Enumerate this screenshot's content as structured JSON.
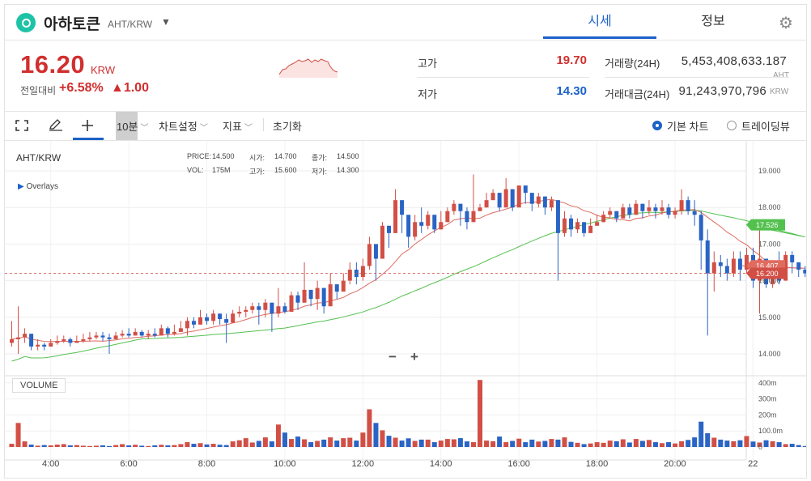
{
  "header": {
    "coin_name": "아하토큰",
    "pair": "AHT/KRW",
    "tabs": [
      {
        "label": "시세",
        "active": true
      },
      {
        "label": "정보",
        "active": false
      }
    ],
    "settings_icon": "gear-icon",
    "dropdown_icon": "caret-down-icon"
  },
  "price": {
    "current": "16.20",
    "currency": "KRW",
    "change_label": "전일대비",
    "change_rate": "+6.58%",
    "change_amount": "▲1.00"
  },
  "stats": {
    "high_label": "고가",
    "high_value": "19.70",
    "low_label": "저가",
    "low_value": "14.30",
    "volume_label": "거래량(24H)",
    "volume_value": "5,453,408,633.187",
    "volume_unit": "AHT",
    "amount_label": "거래대금(24H)",
    "amount_value": "91,243,970,796",
    "amount_unit": "KRW"
  },
  "toolbar": {
    "fullscreen_icon": "fullscreen-icon",
    "pencil_icon": "pencil-icon",
    "crosshair_icon": "crosshair-icon",
    "interval": "10분",
    "chart_settings": "차트설정",
    "indicators": "지표",
    "reset": "초기화",
    "basic_chart": "기본 차트",
    "trading_view": "트레이딩뷰"
  },
  "legend": {
    "symbol": "AHT/KRW",
    "overlays": "Overlays",
    "price_label": "PRICE:",
    "price_value": "14.500",
    "open_label": "시가:",
    "open_value": "14.700",
    "close_label": "종가:",
    "close_value": "14.500",
    "vol_label": "VOL:",
    "vol_value": "175M",
    "high_label": "고가:",
    "high_value": "15.600",
    "low_label": "저가:",
    "low_value": "14.300"
  },
  "volume_panel": {
    "label": "VOLUME"
  },
  "zoom": {
    "minus": "−",
    "plus": "+"
  },
  "colors": {
    "up": "#d24f45",
    "down": "#2a64c4",
    "ma_fast": "#e06c60",
    "ma_slow": "#54c14f",
    "brand": "#1ec3a6",
    "accent": "#1b61c8"
  },
  "chart_data": {
    "type": "candlestick",
    "price_axis_ticks": [
      "19.000",
      "18.000",
      "17.000",
      "16.000",
      "15.000",
      "14.000"
    ],
    "volume_axis_ticks": [
      "400m",
      "300m",
      "200m",
      "100.0m",
      "0"
    ],
    "x_ticks": [
      "4:00",
      "6:00",
      "8:00",
      "10:00",
      "12:00",
      "14:00",
      "16:00",
      "18:00",
      "20:00",
      "22"
    ],
    "ylim": [
      13.6,
      19.3
    ],
    "current_price_label": "16.200",
    "ma_fast_label": "16.407",
    "ma_slow_label": "17.526",
    "candles_start": 3.0,
    "candle_interval_hours": 0.1667,
    "closes": [
      14.4,
      14.45,
      14.55,
      14.2,
      14.25,
      14.2,
      14.3,
      14.35,
      14.4,
      14.3,
      14.35,
      14.4,
      14.45,
      14.5,
      14.45,
      14.4,
      14.5,
      14.55,
      14.5,
      14.6,
      14.5,
      14.55,
      14.5,
      14.7,
      14.55,
      14.6,
      14.7,
      14.9,
      14.8,
      15.0,
      14.9,
      15.1,
      14.95,
      14.85,
      15.1,
      15.15,
      15.2,
      15.3,
      15.2,
      15.4,
      15.1,
      15.3,
      15.15,
      15.6,
      15.4,
      15.75,
      15.5,
      15.8,
      15.3,
      15.9,
      15.7,
      16.0,
      16.3,
      16.1,
      16.4,
      17.0,
      16.6,
      17.5,
      17.3,
      18.2,
      17.8,
      17.2,
      17.6,
      17.5,
      17.8,
      17.4,
      17.6,
      17.9,
      18.1,
      17.9,
      17.6,
      17.9,
      18.0,
      18.2,
      18.4,
      18.0,
      18.5,
      18.0,
      18.6,
      18.4,
      18.1,
      18.3,
      18.0,
      18.2,
      17.3,
      17.7,
      17.4,
      17.6,
      17.3,
      17.5,
      17.6,
      17.8,
      17.9,
      17.7,
      18.0,
      17.8,
      18.1,
      17.9,
      18.0,
      17.9,
      18.0,
      17.8,
      17.9,
      18.2,
      17.9,
      17.8,
      17.1,
      16.2,
      16.5,
      16.4,
      16.2,
      16.6,
      16.3,
      16.7,
      16.0,
      16.6,
      15.9,
      16.3,
      16.0,
      16.7,
      16.5,
      16.3,
      16.2
    ],
    "highs": [
      14.9,
      15.3,
      14.7,
      14.5,
      14.4,
      14.3,
      14.4,
      14.5,
      14.5,
      14.45,
      14.5,
      14.55,
      14.6,
      14.6,
      14.6,
      14.55,
      14.6,
      14.65,
      14.7,
      14.7,
      14.65,
      14.65,
      14.7,
      14.8,
      14.75,
      14.8,
      14.9,
      15.0,
      15.0,
      15.2,
      15.1,
      15.2,
      15.1,
      15.1,
      15.2,
      15.3,
      15.3,
      15.4,
      15.4,
      15.5,
      15.3,
      15.8,
      15.4,
      15.7,
      15.7,
      16.5,
      15.7,
      16.0,
      15.8,
      16.2,
      15.9,
      16.2,
      16.5,
      16.5,
      16.6,
      17.2,
      16.9,
      17.6,
      17.5,
      18.5,
      17.9,
      17.7,
      17.8,
      18.0,
      17.9,
      17.8,
      17.9,
      18.0,
      18.2,
      18.1,
      18.0,
      18.9,
      18.1,
      18.4,
      18.5,
      18.4,
      18.8,
      18.3,
      18.6,
      18.5,
      18.3,
      18.4,
      18.3,
      18.3,
      18.2,
      17.9,
      17.8,
      17.7,
      17.6,
      17.7,
      17.8,
      17.9,
      18.0,
      17.9,
      18.1,
      18.1,
      18.2,
      18.1,
      18.2,
      18.1,
      18.2,
      18.1,
      18.0,
      18.5,
      18.3,
      18.2,
      17.9,
      17.4,
      16.8,
      16.7,
      16.6,
      16.8,
      16.8,
      16.9,
      16.9,
      17.5,
      16.3,
      16.4,
      16.8,
      16.8,
      16.8,
      16.5,
      16.4
    ],
    "lows": [
      14.2,
      14.0,
      14.3,
      14.1,
      14.1,
      14.1,
      14.2,
      14.25,
      14.3,
      14.2,
      14.3,
      14.3,
      14.35,
      14.4,
      14.35,
      14.0,
      14.4,
      14.45,
      14.45,
      14.5,
      14.45,
      14.4,
      14.45,
      14.55,
      14.45,
      14.5,
      14.6,
      14.5,
      14.7,
      14.8,
      14.8,
      14.8,
      14.8,
      14.3,
      14.9,
      15.0,
      15.0,
      15.1,
      14.8,
      15.0,
      14.6,
      15.0,
      15.1,
      15.2,
      15.2,
      15.4,
      15.3,
      15.2,
      15.1,
      15.6,
      15.5,
      15.8,
      15.9,
      15.9,
      16.0,
      16.3,
      16.0,
      17.0,
      16.9,
      17.3,
      17.3,
      16.9,
      17.1,
      17.3,
      17.4,
      17.3,
      17.4,
      17.6,
      17.8,
      17.5,
      17.4,
      17.8,
      17.9,
      18.0,
      18.2,
      17.9,
      18.0,
      17.9,
      18.2,
      18.1,
      17.9,
      18.0,
      17.8,
      17.9,
      16.0,
      17.2,
      17.2,
      17.3,
      17.2,
      17.3,
      17.5,
      17.6,
      17.7,
      17.6,
      17.7,
      17.7,
      17.8,
      17.7,
      17.8,
      17.7,
      17.8,
      17.7,
      17.7,
      17.8,
      17.8,
      17.5,
      16.3,
      14.5,
      15.7,
      16.1,
      16.0,
      16.1,
      16.0,
      16.2,
      15.8,
      15.1,
      15.8,
      15.8,
      15.9,
      16.0,
      16.2,
      16.1,
      16.1
    ],
    "volumes": [
      20,
      150,
      35,
      15,
      8,
      12,
      10,
      15,
      18,
      10,
      12,
      8,
      6,
      8,
      10,
      6,
      12,
      18,
      10,
      14,
      8,
      6,
      10,
      14,
      10,
      12,
      18,
      30,
      20,
      24,
      16,
      20,
      14,
      12,
      35,
      42,
      55,
      28,
      38,
      60,
      35,
      140,
      90,
      50,
      65,
      48,
      30,
      38,
      46,
      60,
      40,
      55,
      58,
      40,
      90,
      235,
      150,
      104,
      70,
      58,
      40,
      54,
      38,
      46,
      46,
      30,
      40,
      50,
      48,
      55,
      35,
      30,
      418,
      40,
      36,
      65,
      30,
      38,
      52,
      30,
      46,
      34,
      38,
      50,
      46,
      60,
      32,
      26,
      18,
      22,
      30,
      26,
      40,
      36,
      48,
      28,
      50,
      38,
      44,
      30,
      24,
      30,
      22,
      36,
      44,
      60,
      158,
      86,
      58,
      46,
      40,
      36,
      42,
      68,
      34,
      28,
      42,
      36,
      30,
      18,
      20,
      12,
      6
    ]
  }
}
